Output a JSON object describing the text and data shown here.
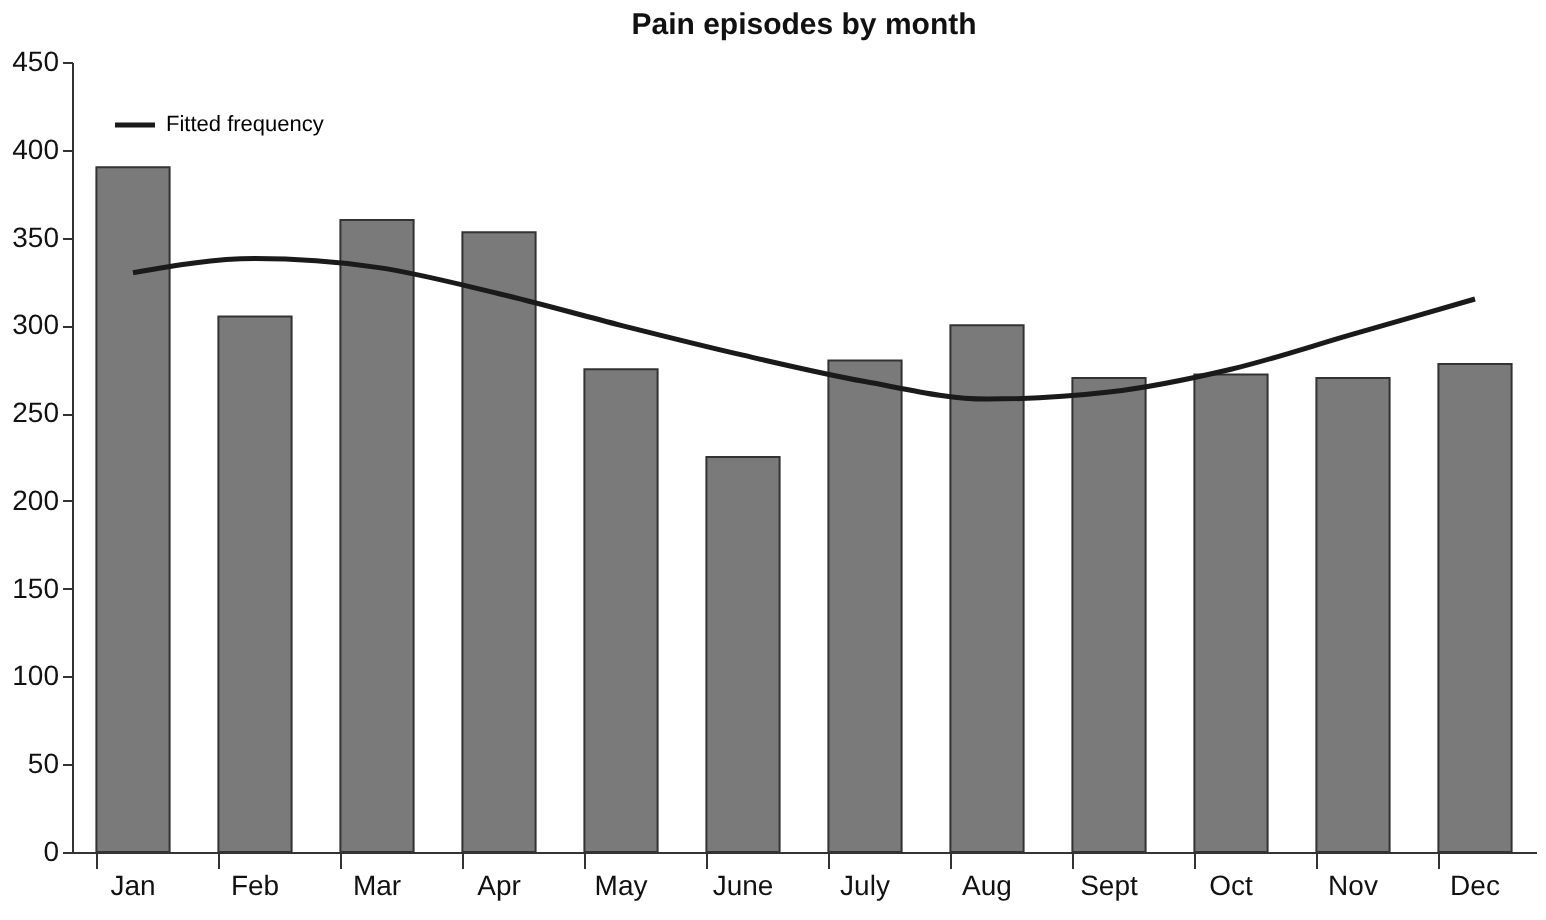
{
  "chart_data": {
    "type": "bar",
    "title": "Pain episodes by month",
    "categories": [
      "Jan",
      "Feb",
      "Mar",
      "Apr",
      "May",
      "June",
      "July",
      "Aug",
      "Sept",
      "Oct",
      "Nov",
      "Dec"
    ],
    "series": [
      {
        "color": "#7a7a7a",
        "values": [
          390,
          305,
          360,
          353,
          275,
          225,
          280,
          300,
          270,
          272,
          270,
          278
        ]
      },
      {
        "type": "line",
        "name": "Fitted frequency",
        "color": "#1a1a1a",
        "marker": "none",
        "line_style": "solid",
        "values": [
          330,
          338,
          333,
          318,
          300,
          283,
          268,
          258,
          262,
          275,
          295,
          315
        ]
      }
    ],
    "ylim": [
      0,
      450
    ],
    "yticks": [
      0,
      50,
      100,
      150,
      200,
      250,
      300,
      350,
      400,
      450
    ],
    "grid": false,
    "legend": "top left"
  }
}
